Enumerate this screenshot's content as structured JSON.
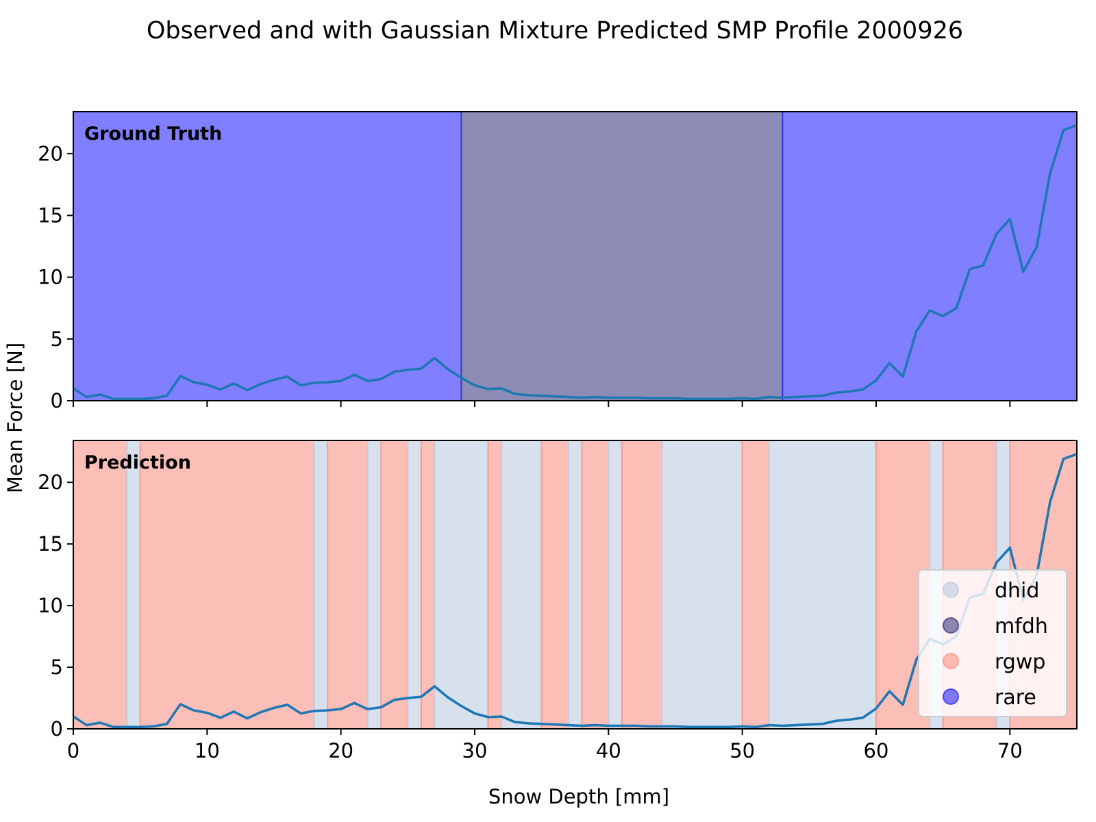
{
  "figure": {
    "title": "Observed and with Gaussian Mixture Predicted SMP Profile 2000926",
    "ylabel": "Mean Force [N]",
    "xlabel": "Snow Depth [mm]"
  },
  "colors": {
    "line": "#1f77b4",
    "dhid": "#b0c4de",
    "mfdh": "#191970",
    "rgwp": "#fa8072",
    "rare": "#0000ff",
    "axes": "#000000"
  },
  "chart_data": {
    "type": "line",
    "xlim": [
      0,
      75
    ],
    "ylim": [
      0,
      23.4
    ],
    "x_ticks": [
      0,
      10,
      20,
      30,
      40,
      50,
      60,
      70
    ],
    "y_ticks": [
      0,
      5,
      10,
      15,
      20
    ],
    "x": [
      0,
      1,
      2,
      3,
      4,
      5,
      6,
      7,
      8,
      9,
      10,
      11,
      12,
      13,
      14,
      15,
      16,
      17,
      18,
      19,
      20,
      21,
      22,
      23,
      24,
      25,
      26,
      27,
      28,
      29,
      30,
      31,
      32,
      33,
      34,
      35,
      36,
      37,
      38,
      39,
      40,
      41,
      42,
      43,
      44,
      45,
      46,
      47,
      48,
      49,
      50,
      51,
      52,
      53,
      54,
      55,
      56,
      57,
      58,
      59,
      60,
      61,
      62,
      63,
      64,
      65,
      66,
      67,
      68,
      69,
      70,
      71,
      72,
      73,
      74,
      75
    ],
    "series": [
      {
        "values": [
          1.0,
          0.3,
          0.5,
          0.15,
          0.15,
          0.15,
          0.2,
          0.4,
          2.0,
          1.5,
          1.3,
          0.9,
          1.4,
          0.85,
          1.35,
          1.7,
          1.95,
          1.25,
          1.45,
          1.5,
          1.6,
          2.1,
          1.6,
          1.75,
          2.35,
          2.5,
          2.6,
          3.45,
          2.55,
          1.85,
          1.25,
          0.95,
          1.0,
          0.55,
          0.45,
          0.4,
          0.35,
          0.3,
          0.25,
          0.3,
          0.25,
          0.25,
          0.25,
          0.2,
          0.2,
          0.2,
          0.15,
          0.15,
          0.15,
          0.15,
          0.2,
          0.15,
          0.3,
          0.25,
          0.3,
          0.35,
          0.4,
          0.65,
          0.75,
          0.9,
          1.65,
          3.05,
          1.95,
          5.6,
          7.3,
          6.85,
          7.5,
          10.65,
          10.95,
          13.5,
          14.7,
          10.45,
          12.45,
          18.4,
          21.9,
          22.3
        ]
      }
    ],
    "panels": [
      {
        "label": "Ground Truth",
        "segments": [
          {
            "start": 0,
            "end": 29,
            "class": "rare"
          },
          {
            "start": 29,
            "end": 53,
            "class": "mfdh"
          },
          {
            "start": 53,
            "end": 75,
            "class": "rare"
          }
        ]
      },
      {
        "label": "Prediction",
        "segments": [
          {
            "start": 0,
            "end": 4,
            "class": "rgwp"
          },
          {
            "start": 4,
            "end": 5,
            "class": "dhid"
          },
          {
            "start": 5,
            "end": 18,
            "class": "rgwp"
          },
          {
            "start": 18,
            "end": 19,
            "class": "dhid"
          },
          {
            "start": 19,
            "end": 22,
            "class": "rgwp"
          },
          {
            "start": 22,
            "end": 23,
            "class": "dhid"
          },
          {
            "start": 23,
            "end": 25,
            "class": "rgwp"
          },
          {
            "start": 25,
            "end": 26,
            "class": "dhid"
          },
          {
            "start": 26,
            "end": 27,
            "class": "rgwp"
          },
          {
            "start": 27,
            "end": 31,
            "class": "dhid"
          },
          {
            "start": 31,
            "end": 32,
            "class": "rgwp"
          },
          {
            "start": 32,
            "end": 35,
            "class": "dhid"
          },
          {
            "start": 35,
            "end": 37,
            "class": "rgwp"
          },
          {
            "start": 37,
            "end": 38,
            "class": "dhid"
          },
          {
            "start": 38,
            "end": 40,
            "class": "rgwp"
          },
          {
            "start": 40,
            "end": 41,
            "class": "dhid"
          },
          {
            "start": 41,
            "end": 44,
            "class": "rgwp"
          },
          {
            "start": 44,
            "end": 50,
            "class": "dhid"
          },
          {
            "start": 50,
            "end": 52,
            "class": "rgwp"
          },
          {
            "start": 52,
            "end": 60,
            "class": "dhid"
          },
          {
            "start": 60,
            "end": 64,
            "class": "rgwp"
          },
          {
            "start": 64,
            "end": 65,
            "class": "dhid"
          },
          {
            "start": 65,
            "end": 69,
            "class": "rgwp"
          },
          {
            "start": 69,
            "end": 70,
            "class": "dhid"
          },
          {
            "start": 70,
            "end": 75,
            "class": "rgwp"
          }
        ]
      }
    ],
    "legend": {
      "placement": "lower-right",
      "entries": [
        "dhid",
        "mfdh",
        "rgwp",
        "rare"
      ]
    },
    "grid": false
  }
}
